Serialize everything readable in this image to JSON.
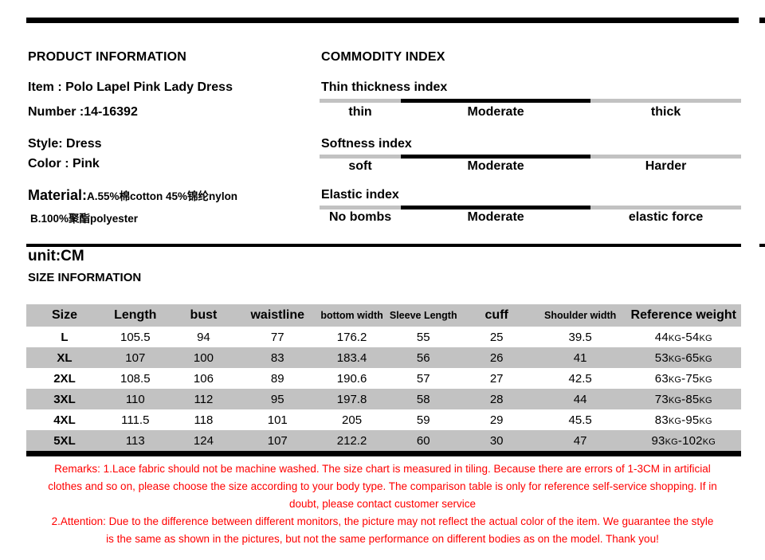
{
  "colors": {
    "black": "#000000",
    "gray": "#c2c2c2",
    "remark_red": "#ff0000"
  },
  "product_info": {
    "title": "PRODUCT INFORMATION",
    "item": "Item : Polo Lapel Pink Lady Dress",
    "number": "Number :14-16392",
    "style": "Style: Dress",
    "color": "Color : Pink",
    "material_label": "Material:",
    "material_a": "A.55%棉cotton 45%锦纶nylon",
    "material_b": "B.100%聚酯polyester"
  },
  "commodity_index": {
    "title": "COMMODITY INDEX",
    "indexes": [
      {
        "name": "Thin thickness index",
        "low": "thin",
        "mid": "Moderate",
        "high": "thick"
      },
      {
        "name": "Softness index",
        "low": "soft",
        "mid": "Moderate",
        "high": "Harder"
      },
      {
        "name": "Elastic index",
        "low": "No bombs",
        "mid": "Moderate",
        "high": "elastic force"
      }
    ]
  },
  "size_section": {
    "unit": "unit:CM",
    "title": "SIZE INFORMATION"
  },
  "size_table": {
    "headers": [
      "Size",
      "Length",
      "bust",
      "waistline",
      "bottom width",
      "Sleeve Length",
      "cuff",
      "Shoulder width",
      "Reference weight"
    ],
    "rows": [
      [
        "L",
        "105.5",
        "94",
        "77",
        "176.2",
        "55",
        "25",
        "39.5",
        "44kg-54kg"
      ],
      [
        "XL",
        "107",
        "100",
        "83",
        "183.4",
        "56",
        "26",
        "41",
        "53kg-65kg"
      ],
      [
        "2XL",
        "108.5",
        "106",
        "89",
        "190.6",
        "57",
        "27",
        "42.5",
        "63kg-75kg"
      ],
      [
        "3XL",
        "110",
        "112",
        "95",
        "197.8",
        "58",
        "28",
        "44",
        "73kg-85kg"
      ],
      [
        "4XL",
        "111.5",
        "118",
        "101",
        "205",
        "59",
        "29",
        "45.5",
        "83kg-95kg"
      ],
      [
        "5XL",
        "113",
        "124",
        "107",
        "212.2",
        "60",
        "30",
        "47",
        "93kg-102kg"
      ]
    ]
  },
  "remarks": {
    "lines": [
      "Remarks:  1.Lace fabric should not be machine washed. The size chart is measured in tiling. Because there are errors of 1-3CM in artificial",
      "clothes and so on, please choose the size according to your body type. The comparison table is only for reference self-service shopping. If in",
      "doubt, please contact customer service",
      "2.Attention: Due to the difference between different monitors, the picture may not reflect the actual color of the item. We guarantee the style",
      "is the same as shown in the pictures, but not the same performance on different bodies as on the model. Thank you!"
    ]
  }
}
